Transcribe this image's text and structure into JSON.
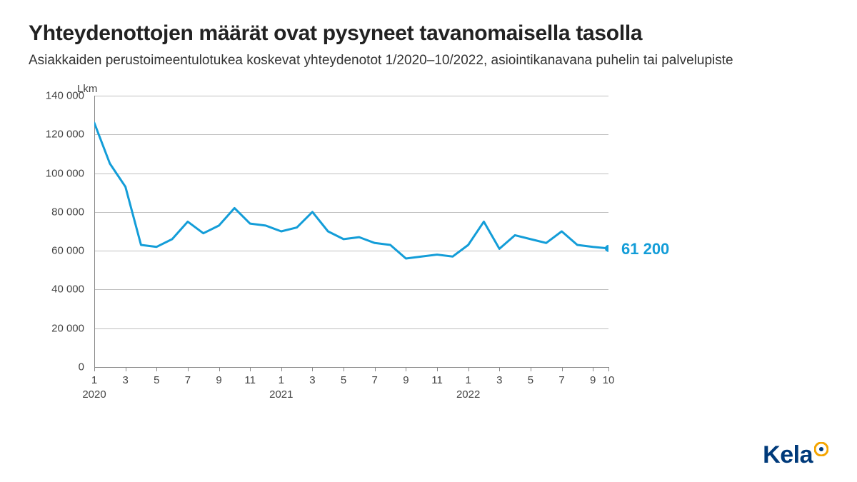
{
  "title": "Yhteydenottojen määrät ovat pysyneet tavanomaisella tasolla",
  "subtitle": "Asiakkaiden perustoimeentulotukea koskevat yhteydenotot 1/2020–10/2022, asiointikanavana puhelin tai palvelupiste",
  "logo": {
    "text": "Kela"
  },
  "chart": {
    "type": "line",
    "y_axis_title": "Lkm",
    "ylim": [
      0,
      140000
    ],
    "ytick_step": 20000,
    "y_ticks": [
      {
        "v": 0,
        "label": "0"
      },
      {
        "v": 20000,
        "label": "20 000"
      },
      {
        "v": 40000,
        "label": "40 000"
      },
      {
        "v": 60000,
        "label": "60 000"
      },
      {
        "v": 80000,
        "label": "80 000"
      },
      {
        "v": 100000,
        "label": "100 000"
      },
      {
        "v": 120000,
        "label": "120 000"
      },
      {
        "v": 140000,
        "label": "140 000"
      }
    ],
    "x_points": [
      "1",
      "2",
      "3",
      "4",
      "5",
      "6",
      "7",
      "8",
      "9",
      "10",
      "11",
      "12",
      "1",
      "2",
      "3",
      "4",
      "5",
      "6",
      "7",
      "8",
      "9",
      "10",
      "11",
      "12",
      "1",
      "2",
      "3",
      "4",
      "5",
      "6",
      "7",
      "8",
      "9",
      "10"
    ],
    "x_labels": [
      {
        "i": 0,
        "label": "1"
      },
      {
        "i": 2,
        "label": "3"
      },
      {
        "i": 4,
        "label": "5"
      },
      {
        "i": 6,
        "label": "7"
      },
      {
        "i": 8,
        "label": "9"
      },
      {
        "i": 10,
        "label": "11"
      },
      {
        "i": 12,
        "label": "1"
      },
      {
        "i": 14,
        "label": "3"
      },
      {
        "i": 16,
        "label": "5"
      },
      {
        "i": 18,
        "label": "7"
      },
      {
        "i": 20,
        "label": "9"
      },
      {
        "i": 22,
        "label": "11"
      },
      {
        "i": 24,
        "label": "1"
      },
      {
        "i": 26,
        "label": "3"
      },
      {
        "i": 28,
        "label": "5"
      },
      {
        "i": 30,
        "label": "7"
      },
      {
        "i": 32,
        "label": "9"
      },
      {
        "i": 33,
        "label": "10"
      }
    ],
    "x_years": [
      {
        "i": 0,
        "label": "2020"
      },
      {
        "i": 12,
        "label": "2021"
      },
      {
        "i": 24,
        "label": "2022"
      }
    ],
    "series": {
      "values": [
        126000,
        105000,
        93000,
        63000,
        62000,
        66000,
        75000,
        69000,
        73000,
        82000,
        74000,
        73000,
        70000,
        72000,
        80000,
        70000,
        66000,
        67000,
        64000,
        63000,
        56000,
        57000,
        58000,
        57000,
        63000,
        75000,
        61000,
        68000,
        66000,
        64000,
        70000,
        63000,
        62000,
        61200
      ],
      "line_color": "#139dd8",
      "line_width": 3,
      "end_marker_radius": 5,
      "end_label": "61 200",
      "end_label_color": "#139dd8"
    },
    "grid_color": "#bfbfbf",
    "axis_color": "#888888",
    "background_color": "#ffffff",
    "label_fontsize": 15,
    "title_fontsize": 30,
    "subtitle_fontsize": 19
  }
}
